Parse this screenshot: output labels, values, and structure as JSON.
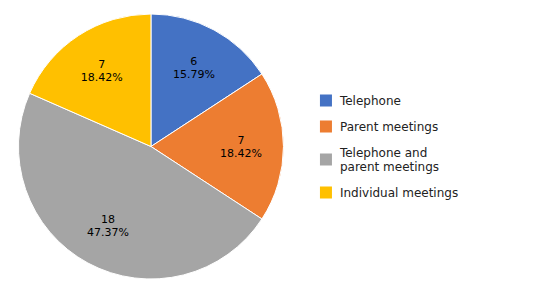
{
  "chart_data": {
    "type": "pie",
    "categories": [
      "Telephone",
      "Parent meetings",
      "Telephone and\nparent meetings",
      "Individual meetings"
    ],
    "values": [
      6,
      7,
      18,
      7
    ],
    "value_labels": [
      "6\n15.79%",
      "7\n18.42%",
      "18\n47.37%",
      "7\n18.42%"
    ],
    "data_labels": true,
    "colors": [
      "#4472C4",
      "#ED7D31",
      "#A5A5A5",
      "#FFC000"
    ],
    "legend": "right"
  }
}
